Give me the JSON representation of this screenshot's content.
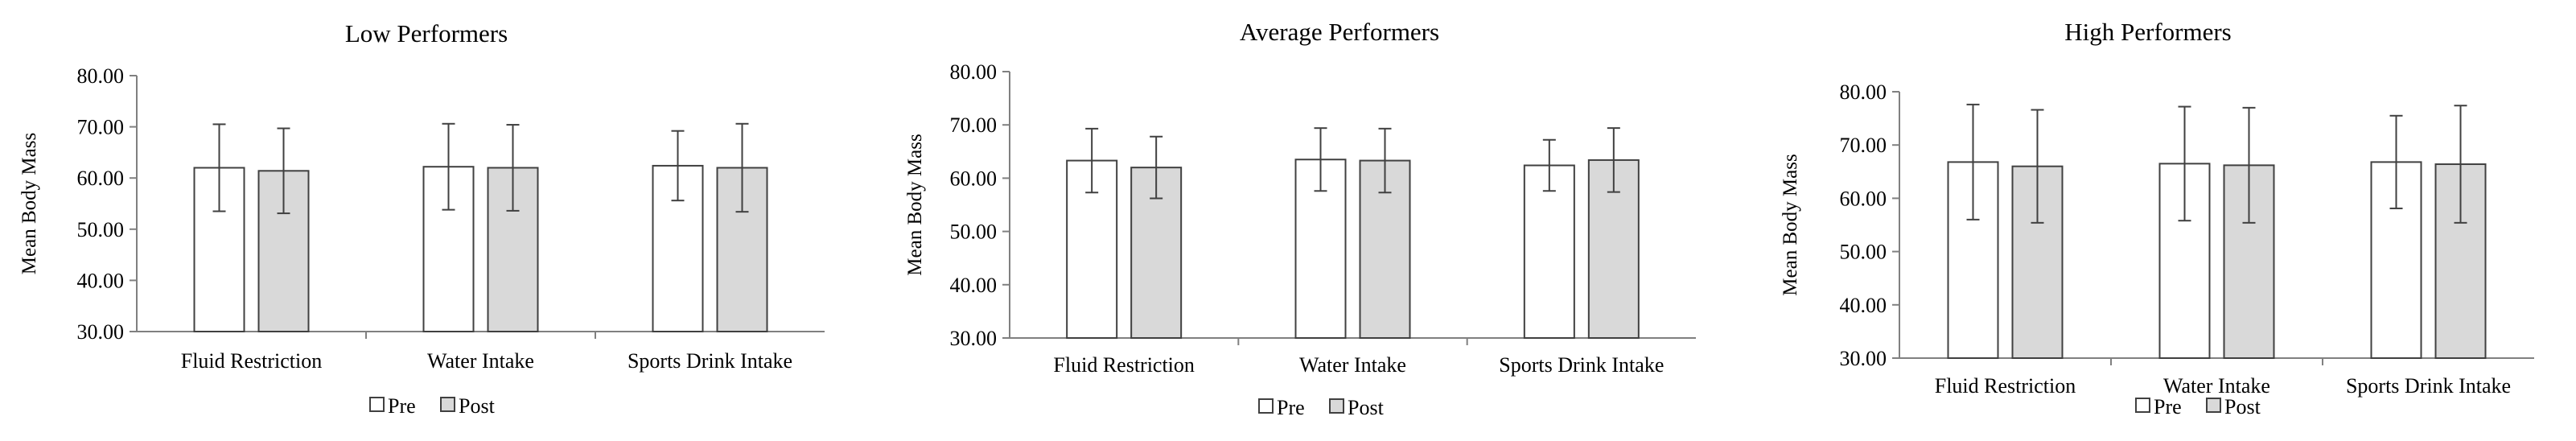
{
  "legend": {
    "pre_label": "Pre",
    "post_label": "Post",
    "pre_color": "#ffffff",
    "post_color": "#d9d9d9"
  },
  "chart_data": [
    {
      "type": "bar",
      "title": "Low Performers",
      "ylabel": "Mean Body Mass",
      "xlabel": "",
      "categories": [
        "Fluid Restriction",
        "Water Intake",
        "Sports Drink Intake"
      ],
      "ylim": [
        30,
        80
      ],
      "yticks": [
        "30.00",
        "40.00",
        "50.00",
        "60.00",
        "70.00",
        "80.00"
      ],
      "series": [
        {
          "name": "Pre",
          "values": [
            62.0,
            62.2,
            62.4
          ],
          "errors": [
            8.5,
            8.4,
            6.8
          ]
        },
        {
          "name": "Post",
          "values": [
            61.4,
            62.0,
            62.0
          ],
          "errors": [
            8.3,
            8.4,
            8.6
          ]
        }
      ]
    },
    {
      "type": "bar",
      "title": "Average Performers",
      "ylabel": "Mean Body Mass",
      "xlabel": "",
      "categories": [
        "Fluid Restriction",
        "Water Intake",
        "Sports Drink Intake"
      ],
      "ylim": [
        30,
        80
      ],
      "yticks": [
        "30.00",
        "40.00",
        "50.00",
        "60.00",
        "70.00",
        "80.00"
      ],
      "series": [
        {
          "name": "Pre",
          "values": [
            63.3,
            63.5,
            62.4
          ],
          "errors": [
            6.0,
            5.9,
            4.8
          ]
        },
        {
          "name": "Post",
          "values": [
            62.0,
            63.3,
            63.4
          ],
          "errors": [
            5.8,
            6.0,
            6.0
          ]
        }
      ]
    },
    {
      "type": "bar",
      "title": "High Performers",
      "ylabel": "Mean Body Mass",
      "xlabel": "",
      "categories": [
        "Fluid Restriction",
        "Water Intake",
        "Sports Drink Intake"
      ],
      "ylim": [
        30,
        80
      ],
      "yticks": [
        "30.00",
        "40.00",
        "50.00",
        "60.00",
        "70.00",
        "80.00"
      ],
      "series": [
        {
          "name": "Pre",
          "values": [
            66.8,
            66.5,
            66.8
          ],
          "errors": [
            10.8,
            10.7,
            8.7
          ]
        },
        {
          "name": "Post",
          "values": [
            66.0,
            66.2,
            66.4
          ],
          "errors": [
            10.6,
            10.8,
            11.0
          ]
        }
      ]
    }
  ]
}
